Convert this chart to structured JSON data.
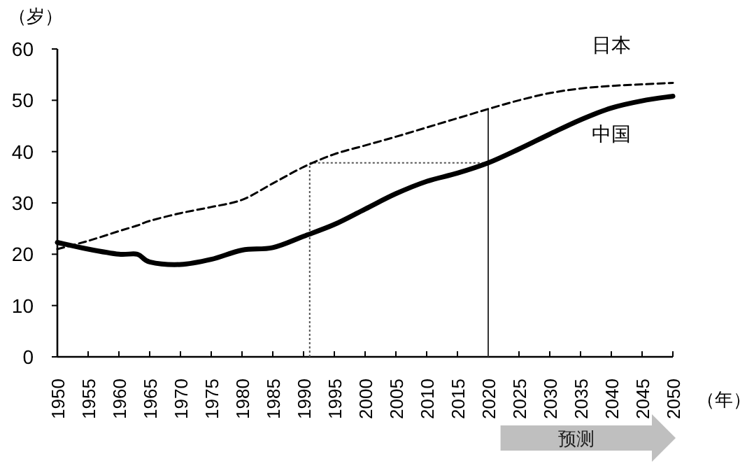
{
  "chart_data": {
    "type": "line",
    "ylabel": "（岁）",
    "xlabel": "（年）",
    "x": [
      1950,
      1955,
      1960,
      1963,
      1965,
      1970,
      1975,
      1980,
      1985,
      1990,
      1995,
      2000,
      2005,
      2010,
      2015,
      2020,
      2025,
      2030,
      2035,
      2040,
      2045,
      2050
    ],
    "series": [
      {
        "name": "日本",
        "color": "#000000",
        "line_style": "dashed",
        "values": [
          21,
          22.6,
          24.5,
          25.6,
          26.5,
          28,
          29.2,
          30.6,
          33.8,
          37,
          39.5,
          41.2,
          42.9,
          44.7,
          46.5,
          48.3,
          50,
          51.4,
          52.3,
          52.8,
          53.1,
          53.4
        ]
      },
      {
        "name": "中国",
        "color": "#000000",
        "line_style": "solid",
        "values": [
          22.3,
          21,
          20,
          20,
          18.5,
          18,
          19,
          20.8,
          21.3,
          23.5,
          25.8,
          28.8,
          31.8,
          34.2,
          35.8,
          37.8,
          40.5,
          43.4,
          46.2,
          48.5,
          49.9,
          50.8
        ]
      }
    ],
    "xlim": [
      1950,
      2050
    ],
    "ylim": [
      0,
      60
    ],
    "xticks": [
      1950,
      1955,
      1960,
      1965,
      1970,
      1975,
      1980,
      1985,
      1990,
      1995,
      2000,
      2005,
      2010,
      2015,
      2020,
      2025,
      2030,
      2035,
      2040,
      2045,
      2050
    ],
    "yticks": [
      0,
      10,
      20,
      30,
      40,
      50,
      60
    ],
    "ref_lines": [
      {
        "axis": "x",
        "value": 1991,
        "line_style": "dotted",
        "color": "#555555"
      },
      {
        "axis": "y",
        "value": 37.8,
        "line_style": "dotted",
        "color": "#555555"
      },
      {
        "axis": "x",
        "value": 2020,
        "line_style": "solid",
        "color": "#333333"
      }
    ],
    "annotations": [
      "预测"
    ],
    "grid": false
  }
}
